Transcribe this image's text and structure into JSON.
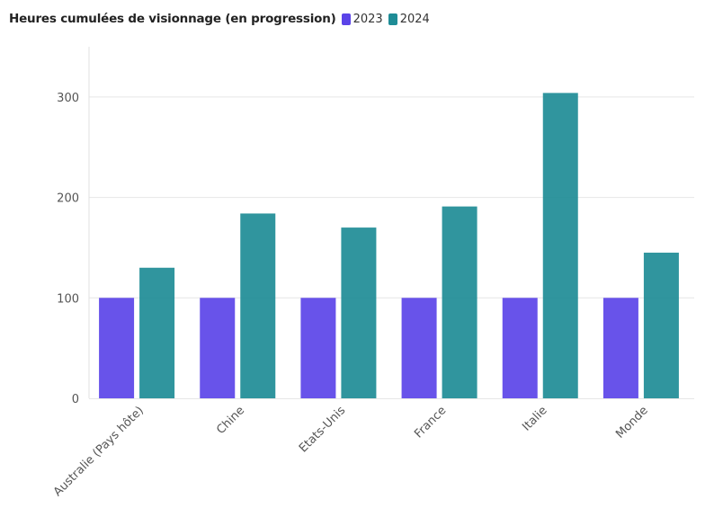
{
  "chart_data": {
    "type": "bar",
    "title": "Heures cumulées de visionnage (en progression)",
    "categories": [
      "Australie (Pays hôte)",
      "Chine",
      "Etats-Unis",
      "France",
      "Italie",
      "Monde"
    ],
    "series": [
      {
        "name": "2023",
        "color": "#5b44e8",
        "values": [
          100,
          100,
          100,
          100,
          100,
          100
        ]
      },
      {
        "name": "2024",
        "color": "#1e8c96",
        "values": [
          130,
          184,
          170,
          191,
          304,
          145
        ]
      }
    ],
    "yticks": [
      0,
      100,
      200,
      300
    ],
    "ylim": [
      0,
      350
    ],
    "grid": true,
    "legend": "top-left"
  }
}
